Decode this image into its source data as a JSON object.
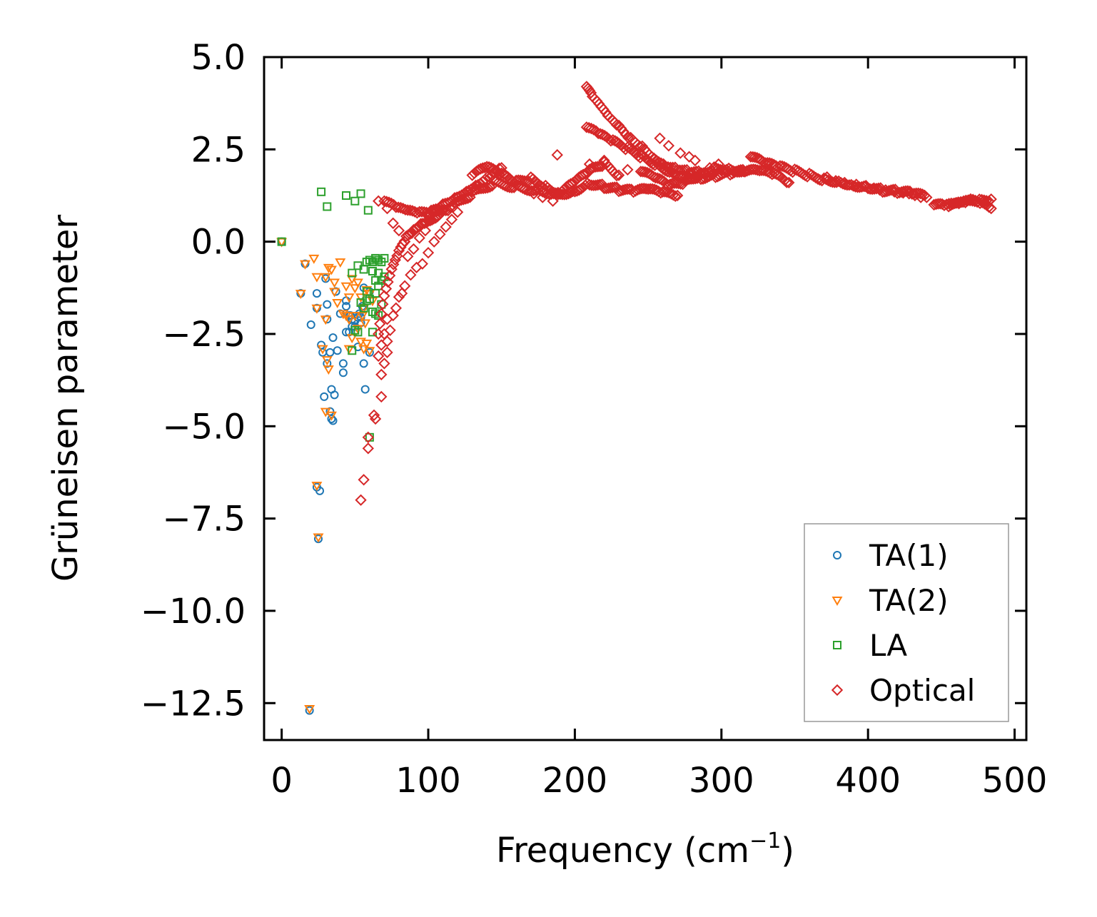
{
  "chart_data": {
    "type": "scatter",
    "title": "",
    "xlabel": "Frequency (cm",
    "xlabel_sup": "−1",
    "xlabel_end": ")",
    "ylabel": "Grüneisen parameter",
    "xlim": [
      -12,
      508
    ],
    "ylim": [
      -13.5,
      5.0
    ],
    "xticks": [
      0,
      100,
      200,
      300,
      400,
      500
    ],
    "xtick_labels": [
      "0",
      "100",
      "200",
      "300",
      "400",
      "500"
    ],
    "yticks": [
      5.0,
      2.5,
      0.0,
      -2.5,
      -5.0,
      -7.5,
      -10.0,
      -12.5
    ],
    "ytick_labels": [
      "5.0",
      "2.5",
      "0.0",
      "−2.5",
      "−5.0",
      "−7.5",
      "−10.0",
      "−12.5"
    ],
    "grid": false,
    "legend_position": "lower-right",
    "series": [
      {
        "name": "TA(1)",
        "marker": "circle",
        "color": "#1f77b4",
        "points": [
          [
            0,
            0
          ],
          [
            16,
            -0.6
          ],
          [
            13,
            -1.4
          ],
          [
            20,
            -2.25
          ],
          [
            24,
            -1.4
          ],
          [
            24,
            -1.8
          ],
          [
            30,
            -1.0
          ],
          [
            31,
            -1.7
          ],
          [
            31,
            -2.1
          ],
          [
            27,
            -2.8
          ],
          [
            28,
            -3.0
          ],
          [
            31,
            -3.3
          ],
          [
            33,
            -3.0
          ],
          [
            35,
            -2.6
          ],
          [
            37,
            -1.35
          ],
          [
            38,
            -2.95
          ],
          [
            40,
            -1.95
          ],
          [
            42,
            -3.3
          ],
          [
            42,
            -3.55
          ],
          [
            44,
            -1.75
          ],
          [
            44,
            -2.45
          ],
          [
            46,
            -2.45
          ],
          [
            48,
            -2.1
          ],
          [
            50,
            -2.15
          ],
          [
            52,
            -2.05
          ],
          [
            53,
            -1.95
          ],
          [
            52,
            -2.85
          ],
          [
            54,
            -2.05
          ],
          [
            55,
            -1.75
          ],
          [
            56,
            -1.25
          ],
          [
            56,
            -3.3
          ],
          [
            57,
            -4.0
          ],
          [
            60,
            -1.35
          ],
          [
            60,
            -3.0
          ],
          [
            34,
            -4.0
          ],
          [
            36,
            -4.15
          ],
          [
            29,
            -4.2
          ],
          [
            33,
            -4.6
          ],
          [
            34,
            -4.8
          ],
          [
            35,
            -4.85
          ],
          [
            24,
            -6.65
          ],
          [
            26,
            -6.75
          ],
          [
            25,
            -8.05
          ],
          [
            19,
            -12.7
          ],
          [
            46,
            -2.0
          ],
          [
            48,
            -2.3
          ],
          [
            50,
            -2.3
          ],
          [
            54,
            -2.2
          ],
          [
            44,
            -1.6
          ],
          [
            47,
            -2.0
          ]
        ]
      },
      {
        "name": "TA(2)",
        "marker": "triangle-down",
        "color": "#ff7f0e",
        "points": [
          [
            0,
            0
          ],
          [
            16,
            -0.6
          ],
          [
            13,
            -1.4
          ],
          [
            22,
            -0.45
          ],
          [
            24,
            -0.95
          ],
          [
            24,
            -1.8
          ],
          [
            30,
            -0.95
          ],
          [
            32,
            -0.7
          ],
          [
            34,
            -0.75
          ],
          [
            36,
            -1.1
          ],
          [
            40,
            -0.55
          ],
          [
            44,
            -1.2
          ],
          [
            46,
            -1.5
          ],
          [
            48,
            -1.0
          ],
          [
            50,
            -1.25
          ],
          [
            52,
            -1.1
          ],
          [
            54,
            -1.5
          ],
          [
            56,
            -1.8
          ],
          [
            58,
            -1.3
          ],
          [
            60,
            -1.4
          ],
          [
            62,
            -1.6
          ],
          [
            28,
            -2.9
          ],
          [
            30,
            -2.1
          ],
          [
            31,
            -3.2
          ],
          [
            32,
            -3.45
          ],
          [
            36,
            -1.35
          ],
          [
            38,
            -1.65
          ],
          [
            44,
            -2.0
          ],
          [
            46,
            -2.9
          ],
          [
            48,
            -2.6
          ],
          [
            52,
            -2.35
          ],
          [
            54,
            -2.7
          ],
          [
            56,
            -2.9
          ],
          [
            58,
            -2.75
          ],
          [
            60,
            -2.95
          ],
          [
            30,
            -4.6
          ],
          [
            34,
            -4.7
          ],
          [
            24,
            -6.6
          ],
          [
            25,
            -8.0
          ],
          [
            19,
            -12.65
          ],
          [
            42,
            -1.95
          ],
          [
            46,
            -2.1
          ],
          [
            50,
            -2.0
          ],
          [
            55,
            -2.0
          ],
          [
            57,
            -2.2
          ]
        ]
      },
      {
        "name": "LA",
        "marker": "square",
        "color": "#2ca02c",
        "points": [
          [
            0,
            0
          ],
          [
            27,
            1.35
          ],
          [
            31,
            0.95
          ],
          [
            44,
            1.25
          ],
          [
            50,
            1.1
          ],
          [
            54,
            1.3
          ],
          [
            59,
            0.85
          ],
          [
            48,
            -0.85
          ],
          [
            52,
            -0.65
          ],
          [
            56,
            -0.75
          ],
          [
            58,
            -0.55
          ],
          [
            60,
            -0.5
          ],
          [
            62,
            -0.55
          ],
          [
            64,
            -0.45
          ],
          [
            66,
            -0.5
          ],
          [
            68,
            -0.55
          ],
          [
            70,
            -0.45
          ],
          [
            62,
            -0.8
          ],
          [
            64,
            -1.05
          ],
          [
            66,
            -1.2
          ],
          [
            68,
            -1.05
          ],
          [
            70,
            -0.95
          ],
          [
            58,
            -1.35
          ],
          [
            60,
            -1.55
          ],
          [
            62,
            -1.9
          ],
          [
            64,
            -1.95
          ],
          [
            66,
            -2.0
          ],
          [
            68,
            -1.7
          ],
          [
            50,
            -2.4
          ],
          [
            52,
            -2.45
          ],
          [
            62,
            -2.45
          ],
          [
            48,
            -2.95
          ],
          [
            60,
            -5.3
          ],
          [
            56,
            -1.8
          ],
          [
            58,
            -1.6
          ],
          [
            54,
            -1.65
          ],
          [
            64,
            -1.4
          ],
          [
            66,
            -0.85
          ]
        ]
      },
      {
        "name": "Optical",
        "marker": "diamond",
        "color": "#d62728",
        "points": []
      }
    ]
  },
  "legend": {
    "items": [
      {
        "label": "TA(1)",
        "marker": "circle",
        "color": "#1f77b4"
      },
      {
        "label": "TA(2)",
        "marker": "triangle-down",
        "color": "#ff7f0e"
      },
      {
        "label": "LA",
        "marker": "square",
        "color": "#2ca02c"
      },
      {
        "label": "Optical",
        "marker": "diamond",
        "color": "#d62728"
      }
    ]
  },
  "optical_bands": [
    {
      "x": [
        66,
        70,
        75,
        80,
        85,
        90,
        95,
        100,
        105,
        110
      ],
      "y": [
        -2.5,
        -1.5,
        -0.8,
        -0.3,
        0.1,
        0.3,
        0.5,
        0.6,
        0.7,
        0.85
      ]
    },
    {
      "x": [
        70,
        78,
        86,
        94,
        102,
        110,
        118,
        126,
        134,
        142,
        150
      ],
      "y": [
        1.1,
        0.9,
        0.8,
        0.75,
        0.8,
        1.0,
        1.2,
        1.4,
        1.6,
        1.8,
        2.0
      ]
    },
    {
      "x": [
        100,
        115,
        130,
        145,
        160,
        175,
        190,
        200,
        210,
        220,
        230,
        240,
        250,
        260,
        270
      ],
      "y": [
        0.7,
        0.9,
        1.3,
        1.6,
        1.5,
        1.4,
        1.3,
        1.4,
        1.6,
        1.5,
        1.4,
        1.35,
        1.4,
        1.3,
        1.25
      ]
    },
    {
      "x": [
        130,
        140,
        150,
        160,
        170,
        180,
        190
      ],
      "y": [
        1.8,
        2.0,
        1.8,
        1.6,
        1.7,
        1.5,
        1.3
      ]
    },
    {
      "x": [
        190,
        200,
        210,
        220,
        230
      ],
      "y": [
        1.3,
        1.6,
        1.9,
        2.1,
        1.8
      ]
    },
    {
      "x": [
        208,
        212,
        218,
        224,
        230,
        238,
        246,
        254,
        262,
        270,
        278,
        286
      ],
      "y": [
        4.2,
        3.9,
        3.6,
        3.3,
        3.1,
        2.8,
        2.6,
        2.3,
        2.1,
        2.0,
        1.9,
        1.85
      ]
    },
    {
      "x": [
        208,
        216,
        226,
        236,
        246,
        256,
        266,
        276,
        286,
        296,
        306,
        316,
        326,
        336,
        346
      ],
      "y": [
        3.1,
        2.9,
        2.7,
        2.5,
        2.3,
        2.1,
        1.9,
        1.8,
        1.75,
        1.8,
        1.85,
        1.9,
        1.9,
        1.8,
        1.6
      ]
    },
    {
      "x": [
        245,
        255,
        265,
        275,
        285,
        295,
        305,
        315
      ],
      "y": [
        1.9,
        1.7,
        1.5,
        1.6,
        1.8,
        2.0,
        2.0,
        1.9
      ]
    },
    {
      "x": [
        320,
        330,
        340,
        350,
        360,
        370,
        380,
        390,
        400,
        410,
        420,
        430,
        440
      ],
      "y": [
        2.3,
        2.1,
        2.0,
        1.9,
        1.8,
        1.7,
        1.65,
        1.55,
        1.5,
        1.4,
        1.35,
        1.3,
        1.2
      ]
    },
    {
      "x": [
        445,
        452,
        460,
        468,
        476,
        484
      ],
      "y": [
        1.0,
        0.95,
        1.0,
        1.05,
        1.1,
        1.15
      ]
    },
    {
      "x": [
        455,
        462,
        470,
        478,
        484
      ],
      "y": [
        0.95,
        1.0,
        1.1,
        1.0,
        0.9
      ]
    }
  ],
  "optical_extra": [
    [
      72,
      -2.7
    ],
    [
      72,
      -3.0
    ],
    [
      70,
      -3.3
    ],
    [
      68,
      -3.6
    ],
    [
      68,
      -4.2
    ],
    [
      63,
      -4.7
    ],
    [
      64,
      -4.8
    ],
    [
      59,
      -5.3
    ],
    [
      59,
      -5.6
    ],
    [
      56,
      -6.45
    ],
    [
      54,
      -7.0
    ],
    [
      74,
      -2.4
    ],
    [
      76,
      -2.0
    ],
    [
      78,
      -1.8
    ],
    [
      80,
      -1.5
    ],
    [
      82,
      -1.4
    ],
    [
      84,
      -1.2
    ],
    [
      72,
      -2.1
    ],
    [
      70,
      -2.5
    ],
    [
      68,
      -2.8
    ],
    [
      66,
      -3.1
    ],
    [
      88,
      -0.9
    ],
    [
      92,
      -0.7
    ],
    [
      96,
      -0.6
    ],
    [
      100,
      -0.3
    ],
    [
      104,
      0.0
    ],
    [
      108,
      0.2
    ],
    [
      112,
      0.4
    ],
    [
      116,
      0.6
    ],
    [
      120,
      0.8
    ],
    [
      66,
      1.1
    ],
    [
      72,
      0.9
    ],
    [
      76,
      0.5
    ],
    [
      80,
      0.3
    ],
    [
      84,
      0.0
    ],
    [
      86,
      -0.4
    ],
    [
      90,
      -0.2
    ],
    [
      94,
      0.1
    ],
    [
      98,
      0.3
    ],
    [
      188,
      2.35
    ],
    [
      210,
      2.1
    ],
    [
      220,
      2.2
    ],
    [
      236,
      1.95
    ],
    [
      185,
      1.1
    ],
    [
      178,
      1.2
    ],
    [
      172,
      1.3
    ],
    [
      258,
      2.8
    ],
    [
      264,
      2.6
    ],
    [
      272,
      2.4
    ],
    [
      278,
      2.3
    ],
    [
      282,
      2.2
    ],
    [
      292,
      2.0
    ],
    [
      298,
      2.1
    ],
    [
      366,
      1.7
    ],
    [
      372,
      1.75
    ],
    [
      378,
      1.65
    ],
    [
      384,
      1.6
    ],
    [
      392,
      1.55
    ],
    [
      398,
      1.5
    ],
    [
      404,
      1.45
    ],
    [
      408,
      1.4
    ],
    [
      412,
      1.4
    ],
    [
      418,
      1.35
    ],
    [
      424,
      1.32
    ],
    [
      428,
      1.3
    ],
    [
      432,
      1.25
    ],
    [
      436,
      1.2
    ]
  ]
}
